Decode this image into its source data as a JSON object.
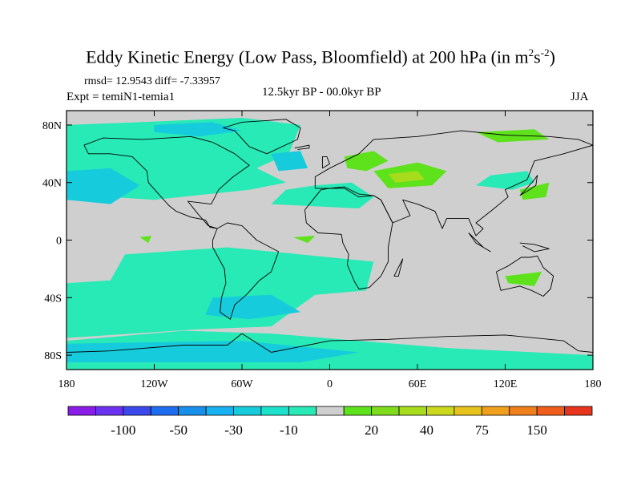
{
  "title": {
    "main": "Eddy Kinetic Energy (Low Pass, Bloomfield) at 200 hPa (in m",
    "sup1": "2",
    "mid": "s",
    "sup2": "-2",
    "end": ")"
  },
  "stats_line": "rmsd= 12.9543 diff= -7.33957",
  "left_label": "Expt = temiN1-temia1",
  "center_label": "12.5kyr BP - 00.0kyr BP",
  "right_label": "JJA",
  "chart_data": {
    "type": "heatmap",
    "title": "Eddy Kinetic Energy (Low Pass, Bloomfield) at 200 hPa (in m2s-2)",
    "x_axis": {
      "range": [
        -180,
        180
      ],
      "ticks": [
        -180,
        -120,
        -60,
        0,
        60,
        120,
        180
      ],
      "tick_labels": [
        "180",
        "120W",
        "60W",
        "0",
        "60E",
        "120E",
        "180"
      ]
    },
    "y_axis": {
      "range": [
        -90,
        90
      ],
      "ticks": [
        80,
        40,
        0,
        -40,
        -80
      ],
      "tick_labels": [
        "80N",
        "40N",
        "0",
        "40S",
        "80S"
      ]
    },
    "colorbar": {
      "colors": [
        "#8a1ce8",
        "#6a32f0",
        "#3a48ec",
        "#1e6cf0",
        "#1790ec",
        "#17b0f0",
        "#16ccdc",
        "#1ce2cc",
        "#27eab6",
        "#cfcfcf",
        "#5ee21c",
        "#7fdc1c",
        "#a7dc1c",
        "#cbd81c",
        "#e6c41c",
        "#f0a01c",
        "#f0801c",
        "#ef5c1c",
        "#e8341c"
      ],
      "label_values": [
        "-100",
        "-50",
        "-30",
        "-10",
        "20",
        "40",
        "75",
        "150"
      ]
    },
    "regions": [
      {
        "level": "-10",
        "color": "#27eab6",
        "polygons": [
          [
            [
              -180,
              80
            ],
            [
              -130,
              82
            ],
            [
              -60,
              85
            ],
            [
              -20,
              80
            ],
            [
              -28,
              60
            ],
            [
              -50,
              50
            ],
            [
              -30,
              40
            ],
            [
              -55,
              35
            ],
            [
              -120,
              28
            ],
            [
              -180,
              32
            ]
          ],
          [
            [
              -40,
              25
            ],
            [
              20,
              22
            ],
            [
              30,
              30
            ],
            [
              15,
              40
            ],
            [
              -10,
              38
            ],
            [
              -30,
              35
            ]
          ],
          [
            [
              -140,
              -10
            ],
            [
              -70,
              -5
            ],
            [
              -20,
              -10
            ],
            [
              30,
              -15
            ],
            [
              25,
              -35
            ],
            [
              -10,
              -38
            ],
            [
              -40,
              -60
            ],
            [
              -90,
              -62
            ],
            [
              -180,
              -68
            ],
            [
              -180,
              -30
            ],
            [
              -150,
              -28
            ]
          ],
          [
            [
              -180,
              -70
            ],
            [
              -100,
              -63
            ],
            [
              -40,
              -65
            ],
            [
              20,
              -70
            ],
            [
              80,
              -75
            ],
            [
              180,
              -80
            ],
            [
              180,
              -90
            ],
            [
              -180,
              -90
            ]
          ],
          [
            [
              100,
              38
            ],
            [
              125,
              35
            ],
            [
              140,
              40
            ],
            [
              135,
              48
            ],
            [
              110,
              45
            ]
          ]
        ]
      },
      {
        "level": "-30",
        "color": "#16ccdc",
        "polygons": [
          [
            [
              -180,
              48
            ],
            [
              -150,
              50
            ],
            [
              -130,
              38
            ],
            [
              -150,
              25
            ],
            [
              -180,
              28
            ]
          ],
          [
            [
              -120,
              80
            ],
            [
              -80,
              82
            ],
            [
              -60,
              76
            ],
            [
              -90,
              72
            ],
            [
              -120,
              75
            ]
          ],
          [
            [
              -40,
              60
            ],
            [
              -20,
              62
            ],
            [
              -15,
              50
            ],
            [
              -35,
              48
            ]
          ],
          [
            [
              -80,
              -40
            ],
            [
              -40,
              -38
            ],
            [
              -20,
              -50
            ],
            [
              -55,
              -55
            ],
            [
              -85,
              -52
            ]
          ],
          [
            [
              -180,
              -72
            ],
            [
              -60,
              -70
            ],
            [
              20,
              -78
            ],
            [
              -20,
              -85
            ],
            [
              -180,
              -85
            ]
          ]
        ]
      },
      {
        "level": "20",
        "color": "#5ee21c",
        "polygons": [
          [
            [
              10,
              58
            ],
            [
              30,
              62
            ],
            [
              40,
              55
            ],
            [
              25,
              48
            ],
            [
              12,
              50
            ]
          ],
          [
            [
              30,
              48
            ],
            [
              60,
              54
            ],
            [
              80,
              48
            ],
            [
              70,
              38
            ],
            [
              40,
              36
            ]
          ],
          [
            [
              100,
              75
            ],
            [
              140,
              77
            ],
            [
              150,
              70
            ],
            [
              115,
              68
            ]
          ],
          [
            [
              -130,
              2
            ],
            [
              -122,
              3
            ],
            [
              -124,
              -2
            ]
          ],
          [
            [
              -25,
              2
            ],
            [
              -10,
              3
            ],
            [
              -15,
              -2
            ]
          ],
          [
            [
              120,
              -25
            ],
            [
              145,
              -22
            ],
            [
              140,
              -32
            ],
            [
              122,
              -30
            ]
          ],
          [
            [
              130,
              35
            ],
            [
              150,
              40
            ],
            [
              148,
              30
            ],
            [
              132,
              28
            ]
          ]
        ]
      },
      {
        "level": "40",
        "color": "#a7dc1c",
        "polygons": [
          [
            [
              40,
              46
            ],
            [
              60,
              48
            ],
            [
              65,
              42
            ],
            [
              45,
              40
            ]
          ]
        ]
      }
    ],
    "coastlines": [
      [
        [
          -168,
          66
        ],
        [
          -155,
          71
        ],
        [
          -128,
          70
        ],
        [
          -95,
          72
        ],
        [
          -80,
          68
        ],
        [
          -65,
          60
        ],
        [
          -55,
          52
        ],
        [
          -66,
          44
        ],
        [
          -76,
          35
        ],
        [
          -81,
          25
        ],
        [
          -97,
          27
        ],
        [
          -90,
          18
        ],
        [
          -83,
          10
        ],
        [
          -77,
          8
        ],
        [
          -82,
          9
        ],
        [
          -85,
          14
        ],
        [
          -95,
          16
        ],
        [
          -105,
          20
        ],
        [
          -110,
          24
        ],
        [
          -117,
          32
        ],
        [
          -124,
          40
        ],
        [
          -125,
          48
        ],
        [
          -135,
          58
        ],
        [
          -150,
          60
        ],
        [
          -165,
          60
        ],
        [
          -168,
          66
        ]
      ],
      [
        [
          -77,
          8
        ],
        [
          -70,
          12
        ],
        [
          -60,
          10
        ],
        [
          -50,
          0
        ],
        [
          -35,
          -8
        ],
        [
          -40,
          -22
        ],
        [
          -48,
          -28
        ],
        [
          -57,
          -38
        ],
        [
          -65,
          -45
        ],
        [
          -68,
          -55
        ],
        [
          -75,
          -50
        ],
        [
          -74,
          -40
        ],
        [
          -71,
          -30
        ],
        [
          -72,
          -20
        ],
        [
          -80,
          -5
        ],
        [
          -80,
          0
        ],
        [
          -77,
          8
        ]
      ],
      [
        [
          -73,
          78
        ],
        [
          -60,
          82
        ],
        [
          -30,
          84
        ],
        [
          -20,
          78
        ],
        [
          -22,
          70
        ],
        [
          -43,
          60
        ],
        [
          -55,
          65
        ],
        [
          -65,
          76
        ],
        [
          -73,
          78
        ]
      ],
      [
        [
          -10,
          36
        ],
        [
          -10,
          44
        ],
        [
          0,
          50
        ],
        [
          10,
          55
        ],
        [
          20,
          60
        ],
        [
          30,
          70
        ],
        [
          60,
          72
        ],
        [
          90,
          76
        ],
        [
          120,
          73
        ],
        [
          150,
          72
        ],
        [
          170,
          70
        ],
        [
          180,
          66
        ],
        [
          160,
          60
        ],
        [
          140,
          55
        ],
        [
          135,
          42
        ],
        [
          120,
          35
        ],
        [
          122,
          30
        ],
        [
          110,
          20
        ],
        [
          100,
          12
        ],
        [
          105,
          8
        ],
        [
          100,
          3
        ],
        [
          95,
          15
        ],
        [
          80,
          15
        ],
        [
          77,
          8
        ],
        [
          72,
          20
        ],
        [
          60,
          25
        ],
        [
          50,
          28
        ],
        [
          55,
          17
        ],
        [
          43,
          12
        ],
        [
          35,
          28
        ],
        [
          30,
          31
        ],
        [
          20,
          30
        ],
        [
          10,
          36
        ],
        [
          0,
          36
        ],
        [
          -10,
          36
        ]
      ],
      [
        [
          -17,
          21
        ],
        [
          -16,
          12
        ],
        [
          -8,
          5
        ],
        [
          8,
          4
        ],
        [
          9,
          -2
        ],
        [
          13,
          -10
        ],
        [
          12,
          -17
        ],
        [
          17,
          -29
        ],
        [
          20,
          -34
        ],
        [
          27,
          -33
        ],
        [
          35,
          -25
        ],
        [
          40,
          -15
        ],
        [
          40,
          -5
        ],
        [
          43,
          12
        ],
        [
          35,
          28
        ],
        [
          30,
          31
        ],
        [
          20,
          32
        ],
        [
          10,
          37
        ],
        [
          0,
          36
        ],
        [
          -6,
          35
        ],
        [
          -10,
          30
        ],
        [
          -17,
          21
        ]
      ],
      [
        [
          114,
          -22
        ],
        [
          122,
          -18
        ],
        [
          131,
          -12
        ],
        [
          137,
          -12
        ],
        [
          142,
          -11
        ],
        [
          146,
          -19
        ],
        [
          153,
          -25
        ],
        [
          151,
          -34
        ],
        [
          146,
          -39
        ],
        [
          138,
          -35
        ],
        [
          130,
          -32
        ],
        [
          117,
          -35
        ],
        [
          114,
          -22
        ]
      ],
      [
        [
          44,
          -25
        ],
        [
          49,
          -15
        ],
        [
          50,
          -13
        ],
        [
          47,
          -25
        ],
        [
          44,
          -25
        ]
      ],
      [
        [
          -180,
          -78
        ],
        [
          -150,
          -77
        ],
        [
          -100,
          -73
        ],
        [
          -70,
          -73
        ],
        [
          -60,
          -65
        ],
        [
          -40,
          -78
        ],
        [
          0,
          -70
        ],
        [
          40,
          -69
        ],
        [
          80,
          -67
        ],
        [
          120,
          -66
        ],
        [
          160,
          -70
        ],
        [
          170,
          -77
        ],
        [
          180,
          -78
        ]
      ],
      [
        [
          130,
          31
        ],
        [
          135,
          34
        ],
        [
          141,
          38
        ],
        [
          142,
          45
        ],
        [
          140,
          42
        ],
        [
          133,
          34
        ],
        [
          130,
          31
        ]
      ],
      [
        [
          95,
          5
        ],
        [
          105,
          -5
        ],
        [
          110,
          -8
        ],
        [
          100,
          -2
        ],
        [
          95,
          5
        ]
      ],
      [
        [
          130,
          -2
        ],
        [
          140,
          -3
        ],
        [
          150,
          -6
        ],
        [
          140,
          -8
        ],
        [
          132,
          -4
        ]
      ],
      [
        [
          -5,
          50
        ],
        [
          -5,
          58
        ],
        [
          -2,
          58
        ],
        [
          0,
          53
        ],
        [
          -5,
          50
        ]
      ],
      [
        [
          -24,
          64
        ],
        [
          -14,
          66
        ],
        [
          -14,
          64
        ],
        [
          -22,
          63
        ]
      ]
    ]
  }
}
